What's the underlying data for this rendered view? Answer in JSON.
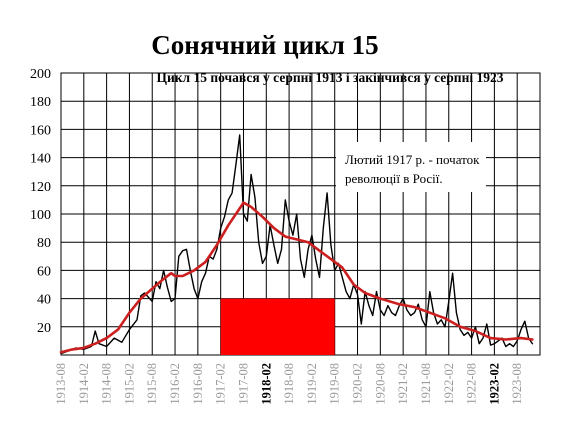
{
  "chart_data": {
    "type": "line",
    "title": "Сонячний цикл 15",
    "subtitle": "Цикл 15 почався у серпні 1913 і закінчився у серпні 1923",
    "annotation_lines": [
      "Лютий 1917 р. - початок",
      "революції в Росії."
    ],
    "ylim": [
      0,
      200
    ],
    "yticks": [
      20,
      40,
      60,
      80,
      100,
      120,
      140,
      160,
      180,
      200
    ],
    "xlim": [
      "1913-08",
      "1924-02"
    ],
    "grid": true,
    "xtick_labels": [
      {
        "label": "1913-08",
        "bold": false
      },
      {
        "label": "1914-02",
        "bold": false
      },
      {
        "label": "1914-08",
        "bold": false
      },
      {
        "label": "1915-02",
        "bold": false
      },
      {
        "label": "1915-08",
        "bold": false
      },
      {
        "label": "1916-02",
        "bold": false
      },
      {
        "label": "1916-08",
        "bold": false
      },
      {
        "label": "1917-02",
        "bold": false
      },
      {
        "label": "1917-08",
        "bold": false
      },
      {
        "label": "1918-02",
        "bold": true
      },
      {
        "label": "1918-08",
        "bold": false
      },
      {
        "label": "1919-02",
        "bold": false
      },
      {
        "label": "1919-08",
        "bold": false
      },
      {
        "label": "1920-02",
        "bold": false
      },
      {
        "label": "1920-08",
        "bold": false
      },
      {
        "label": "1921-02",
        "bold": false
      },
      {
        "label": "1921-08",
        "bold": false
      },
      {
        "label": "1922-02",
        "bold": false
      },
      {
        "label": "1922-08",
        "bold": false
      },
      {
        "label": "1923-02",
        "bold": true
      },
      {
        "label": "1923-08",
        "bold": false
      }
    ],
    "highlight": {
      "start": "1917-02",
      "end": "1919-08",
      "value": 40,
      "color": "#ff0000"
    },
    "series": [
      {
        "style": "monthly",
        "color": "#000000",
        "points": [
          [
            "1913-08",
            1
          ],
          [
            "1913-10",
            3
          ],
          [
            "1913-12",
            5
          ],
          [
            "1914-02",
            4
          ],
          [
            "1914-04",
            6
          ],
          [
            "1914-05",
            17
          ],
          [
            "1914-06",
            8
          ],
          [
            "1914-08",
            6
          ],
          [
            "1914-10",
            12
          ],
          [
            "1914-12",
            9
          ],
          [
            "1915-02",
            18
          ],
          [
            "1915-04",
            25
          ],
          [
            "1915-05",
            42
          ],
          [
            "1915-06",
            44
          ],
          [
            "1915-08",
            38
          ],
          [
            "1915-09",
            52
          ],
          [
            "1915-10",
            47
          ],
          [
            "1915-11",
            60
          ],
          [
            "1915-12",
            48
          ],
          [
            "1916-01",
            38
          ],
          [
            "1916-02",
            40
          ],
          [
            "1916-03",
            70
          ],
          [
            "1916-04",
            74
          ],
          [
            "1916-05",
            75
          ],
          [
            "1916-06",
            60
          ],
          [
            "1916-07",
            47
          ],
          [
            "1916-08",
            40
          ],
          [
            "1916-09",
            52
          ],
          [
            "1916-10",
            58
          ],
          [
            "1916-11",
            70
          ],
          [
            "1916-12",
            68
          ],
          [
            "1917-01",
            75
          ],
          [
            "1917-02",
            90
          ],
          [
            "1917-03",
            98
          ],
          [
            "1917-04",
            110
          ],
          [
            "1917-05",
            115
          ],
          [
            "1917-06",
            135
          ],
          [
            "1917-07",
            156
          ],
          [
            "1917-08",
            100
          ],
          [
            "1917-09",
            95
          ],
          [
            "1917-10",
            128
          ],
          [
            "1917-11",
            112
          ],
          [
            "1917-12",
            80
          ],
          [
            "1918-01",
            65
          ],
          [
            "1918-02",
            70
          ],
          [
            "1918-03",
            92
          ],
          [
            "1918-04",
            78
          ],
          [
            "1918-05",
            65
          ],
          [
            "1918-06",
            75
          ],
          [
            "1918-07",
            110
          ],
          [
            "1918-08",
            95
          ],
          [
            "1918-09",
            85
          ],
          [
            "1918-10",
            100
          ],
          [
            "1918-11",
            68
          ],
          [
            "1918-12",
            55
          ],
          [
            "1919-01",
            75
          ],
          [
            "1919-02",
            85
          ],
          [
            "1919-03",
            68
          ],
          [
            "1919-04",
            55
          ],
          [
            "1919-05",
            90
          ],
          [
            "1919-06",
            115
          ],
          [
            "1919-07",
            78
          ],
          [
            "1919-08",
            60
          ],
          [
            "1919-09",
            65
          ],
          [
            "1919-10",
            55
          ],
          [
            "1919-11",
            45
          ],
          [
            "1919-12",
            40
          ],
          [
            "1920-01",
            50
          ],
          [
            "1920-02",
            43
          ],
          [
            "1920-03",
            22
          ],
          [
            "1920-04",
            45
          ],
          [
            "1920-05",
            35
          ],
          [
            "1920-06",
            28
          ],
          [
            "1920-07",
            45
          ],
          [
            "1920-08",
            32
          ],
          [
            "1920-09",
            28
          ],
          [
            "1920-10",
            35
          ],
          [
            "1920-11",
            30
          ],
          [
            "1920-12",
            28
          ],
          [
            "1921-01",
            35
          ],
          [
            "1921-02",
            40
          ],
          [
            "1921-03",
            32
          ],
          [
            "1921-04",
            28
          ],
          [
            "1921-05",
            30
          ],
          [
            "1921-06",
            36
          ],
          [
            "1921-07",
            25
          ],
          [
            "1921-08",
            20
          ],
          [
            "1921-09",
            45
          ],
          [
            "1921-10",
            30
          ],
          [
            "1921-11",
            22
          ],
          [
            "1921-12",
            25
          ],
          [
            "1922-01",
            20
          ],
          [
            "1922-02",
            38
          ],
          [
            "1922-03",
            58
          ],
          [
            "1922-04",
            30
          ],
          [
            "1922-05",
            18
          ],
          [
            "1922-06",
            14
          ],
          [
            "1922-07",
            16
          ],
          [
            "1922-08",
            12
          ],
          [
            "1922-09",
            20
          ],
          [
            "1922-10",
            8
          ],
          [
            "1922-11",
            12
          ],
          [
            "1922-12",
            22
          ],
          [
            "1923-01",
            7
          ],
          [
            "1923-02",
            8
          ],
          [
            "1923-03",
            10
          ],
          [
            "1923-04",
            12
          ],
          [
            "1923-05",
            6
          ],
          [
            "1923-06",
            8
          ],
          [
            "1923-07",
            6
          ],
          [
            "1923-08",
            10
          ],
          [
            "1923-09",
            18
          ],
          [
            "1923-10",
            24
          ],
          [
            "1923-11",
            12
          ],
          [
            "1923-12",
            8
          ]
        ]
      },
      {
        "style": "smoothed",
        "color": "#cc1f1f",
        "points": [
          [
            "1913-08",
            2
          ],
          [
            "1913-11",
            4
          ],
          [
            "1914-02",
            5
          ],
          [
            "1914-05",
            8
          ],
          [
            "1914-08",
            12
          ],
          [
            "1914-11",
            18
          ],
          [
            "1915-02",
            30
          ],
          [
            "1915-05",
            40
          ],
          [
            "1915-08",
            47
          ],
          [
            "1915-11",
            54
          ],
          [
            "1916-01",
            58
          ],
          [
            "1916-02",
            56
          ],
          [
            "1916-04",
            56
          ],
          [
            "1916-07",
            60
          ],
          [
            "1916-10",
            66
          ],
          [
            "1917-01",
            78
          ],
          [
            "1917-04",
            92
          ],
          [
            "1917-07",
            104
          ],
          [
            "1917-08",
            108
          ],
          [
            "1917-10",
            105
          ],
          [
            "1918-01",
            98
          ],
          [
            "1918-04",
            90
          ],
          [
            "1918-07",
            84
          ],
          [
            "1918-10",
            82
          ],
          [
            "1919-01",
            80
          ],
          [
            "1919-04",
            74
          ],
          [
            "1919-07",
            68
          ],
          [
            "1919-10",
            62
          ],
          [
            "1920-01",
            50
          ],
          [
            "1920-04",
            44
          ],
          [
            "1920-08",
            40
          ],
          [
            "1921-01",
            36
          ],
          [
            "1921-05",
            34
          ],
          [
            "1921-09",
            30
          ],
          [
            "1922-01",
            26
          ],
          [
            "1922-05",
            20
          ],
          [
            "1922-09",
            17
          ],
          [
            "1923-01",
            12
          ],
          [
            "1923-05",
            11
          ],
          [
            "1923-09",
            12
          ],
          [
            "1923-12",
            11
          ]
        ]
      }
    ]
  }
}
